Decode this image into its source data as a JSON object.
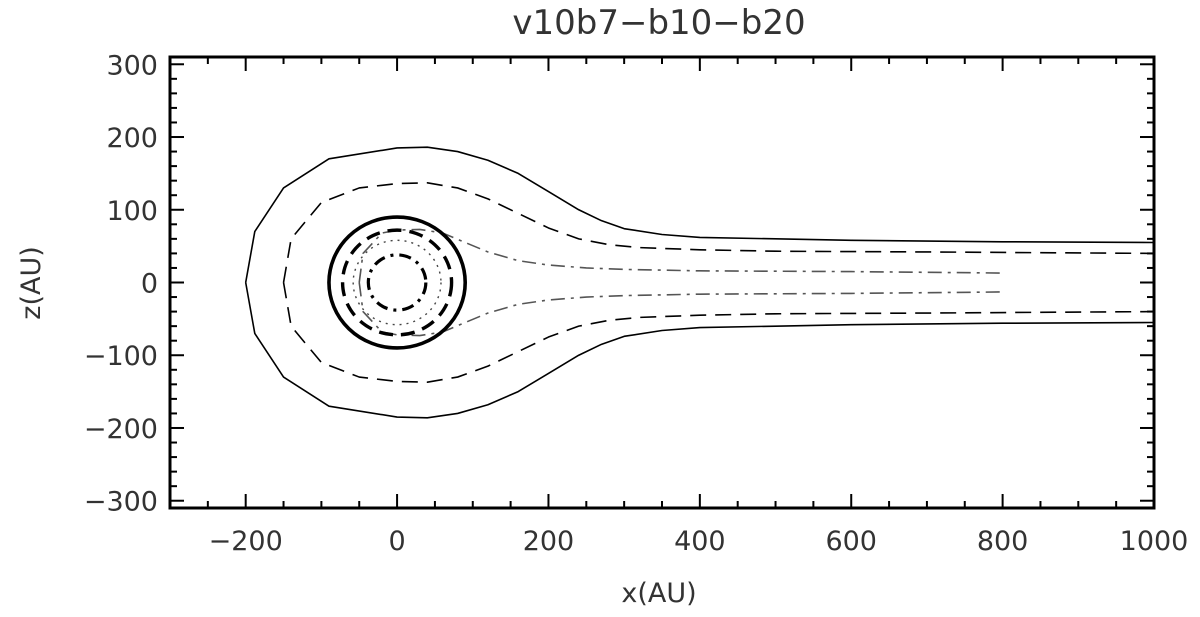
{
  "chart_data": {
    "type": "line",
    "title": "v10b7−b10−b20",
    "xlabel": "x(AU)",
    "ylabel": "z(AU)",
    "xlim": [
      -300,
      1000
    ],
    "ylim": [
      -310,
      310
    ],
    "xticks": [
      -200,
      0,
      200,
      400,
      600,
      800,
      1000
    ],
    "xtick_labels": [
      "−200",
      "0",
      "200",
      "400",
      "600",
      "800",
      "1000"
    ],
    "yticks": [
      300,
      200,
      100,
      0,
      -100,
      -200,
      -300
    ],
    "ytick_labels": [
      "300",
      "200",
      "100",
      "0",
      "−100",
      "−200",
      "−300"
    ],
    "grid": false,
    "series": [
      {
        "style": "solid",
        "points": [
          [
            -200,
            0
          ],
          [
            -188,
            70
          ],
          [
            -150,
            130
          ],
          [
            -90,
            170
          ],
          [
            0,
            185
          ],
          [
            40,
            186
          ],
          [
            80,
            180
          ],
          [
            120,
            168
          ],
          [
            160,
            150
          ],
          [
            200,
            125
          ],
          [
            240,
            100
          ],
          [
            270,
            85
          ],
          [
            300,
            74
          ],
          [
            350,
            66
          ],
          [
            400,
            62
          ],
          [
            500,
            60
          ],
          [
            600,
            58
          ],
          [
            700,
            57
          ],
          [
            800,
            56
          ],
          [
            1000,
            55
          ]
        ],
        "mirror": true
      },
      {
        "style": "dashed",
        "points": [
          [
            -150,
            0
          ],
          [
            -140,
            60
          ],
          [
            -100,
            110
          ],
          [
            -50,
            130
          ],
          [
            0,
            136
          ],
          [
            40,
            137
          ],
          [
            80,
            130
          ],
          [
            120,
            115
          ],
          [
            160,
            95
          ],
          [
            200,
            75
          ],
          [
            240,
            60
          ],
          [
            280,
            52
          ],
          [
            320,
            48
          ],
          [
            400,
            45
          ],
          [
            500,
            43
          ],
          [
            700,
            42
          ],
          [
            1000,
            40
          ]
        ],
        "mirror": true
      },
      {
        "style": "dashdot",
        "points": [
          [
            -50,
            0
          ],
          [
            -45,
            40
          ],
          [
            -20,
            68
          ],
          [
            0,
            72
          ],
          [
            30,
            73
          ],
          [
            60,
            68
          ],
          [
            90,
            55
          ],
          [
            120,
            42
          ],
          [
            160,
            30
          ],
          [
            200,
            24
          ],
          [
            250,
            20
          ],
          [
            300,
            18
          ],
          [
            400,
            16
          ],
          [
            600,
            15
          ],
          [
            800,
            13
          ]
        ],
        "mirror": true
      },
      {
        "style": "thick-solid-circle",
        "center": [
          0,
          0
        ],
        "radius": 90
      },
      {
        "style": "thick-dashed-circle",
        "center": [
          0,
          0
        ],
        "radius": 72
      },
      {
        "style": "thick-dashdot-circle",
        "center": [
          0,
          0
        ],
        "radius": 38
      },
      {
        "style": "dotted-circle",
        "center": [
          0,
          0
        ],
        "radius": 58
      }
    ]
  }
}
